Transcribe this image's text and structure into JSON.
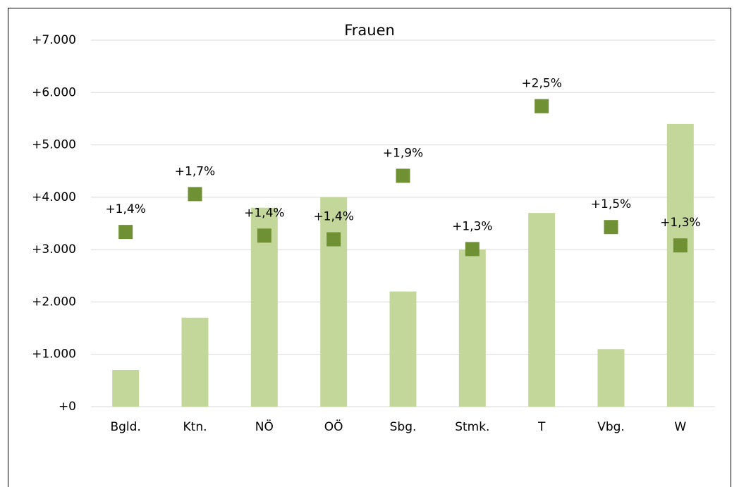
{
  "chart_data": {
    "type": "bar",
    "title": "Frauen",
    "categories": [
      "Bgld.",
      "Ktn.",
      "NÖ",
      "OÖ",
      "Sbg.",
      "Stmk.",
      "T",
      "Vbg.",
      "W"
    ],
    "series": [
      {
        "type": "bar",
        "color": "#c4d79b",
        "values": [
          700,
          1700,
          3800,
          4000,
          2200,
          3000,
          3700,
          1100,
          5400
        ]
      },
      {
        "type": "scatter",
        "axis": "y2",
        "color": "#6f9133",
        "marker": "square",
        "values": [
          1.43,
          1.74,
          1.4,
          1.37,
          1.89,
          1.29,
          2.46,
          1.47,
          1.32
        ],
        "value_labels": [
          "+1,4%",
          "+1,7%",
          "+1,4%",
          "+1,4%",
          "+1,9%",
          "+1,3%",
          "+2,5%",
          "+1,5%",
          "+1,3%"
        ]
      }
    ],
    "ylim": [
      0,
      7000
    ],
    "yticks": [
      {
        "value": 0,
        "label": "+0"
      },
      {
        "value": 1000,
        "label": "+1.000"
      },
      {
        "value": 2000,
        "label": "+2.000"
      },
      {
        "value": 3000,
        "label": "+3.000"
      },
      {
        "value": 4000,
        "label": "+4.000"
      },
      {
        "value": 5000,
        "label": "+5.000"
      },
      {
        "value": 6000,
        "label": "+6.000"
      },
      {
        "value": 7000,
        "label": "+7.000"
      }
    ],
    "y2lim": [
      0,
      3
    ],
    "grid": true
  }
}
